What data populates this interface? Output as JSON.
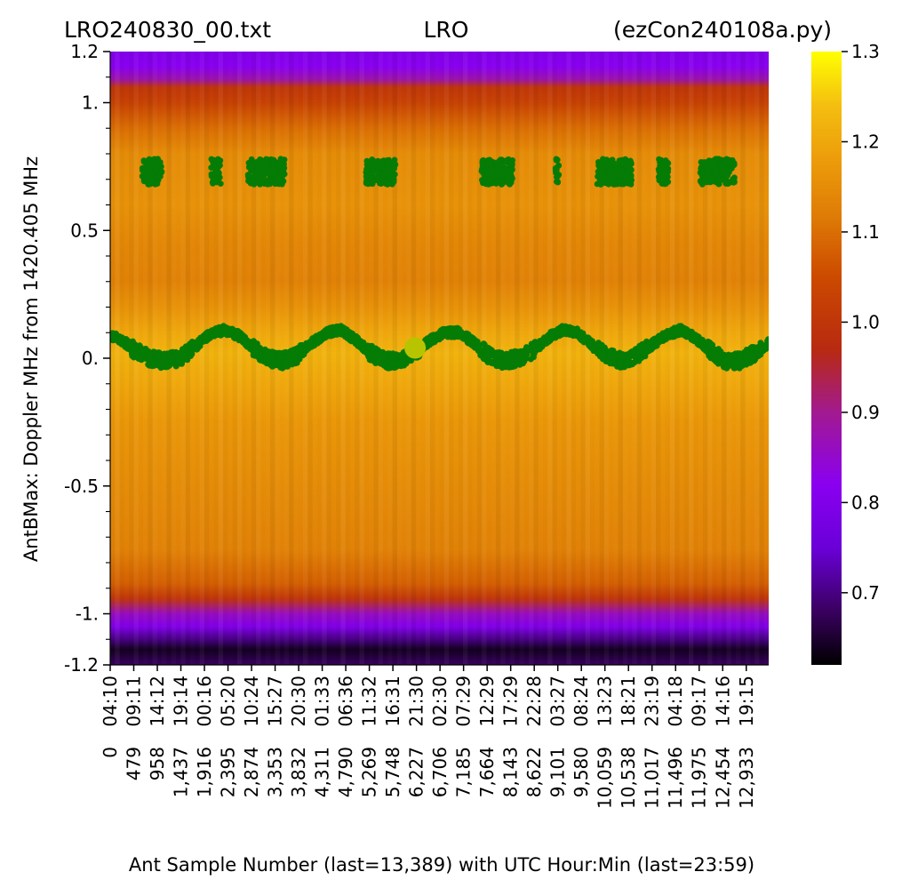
{
  "header": {
    "left": "LRO240830_00.txt",
    "center": "LRO",
    "right": "(ezCon240108a.py)"
  },
  "chart_data": {
    "type": "heatmap",
    "ylabel": "AntBMax:  Doppler MHz from 1420.405 MHz",
    "xlabel": "Ant Sample Number (last=13,389) with UTC Hour:Min (last=23:59)",
    "ylim": [
      -1.2,
      1.2
    ],
    "xlim": [
      0,
      13389
    ],
    "y_ticks": [
      {
        "value": 1.2,
        "label": "1.2"
      },
      {
        "value": 1.0,
        "label": "1."
      },
      {
        "value": 0.5,
        "label": "0.5"
      },
      {
        "value": 0.0,
        "label": "0."
      },
      {
        "value": -0.5,
        "label": "-0.5"
      },
      {
        "value": -1.0,
        "label": "-1."
      },
      {
        "value": -1.2,
        "label": "-1.2"
      }
    ],
    "y_minor_ticks": [
      1.1,
      0.9,
      0.8,
      0.7,
      0.6,
      0.4,
      0.3,
      0.2,
      0.1,
      -0.1,
      -0.2,
      -0.3,
      -0.4,
      -0.6,
      -0.7,
      -0.8,
      -0.9,
      -1.1
    ],
    "x_ticks": [
      {
        "sample": 0,
        "sample_label": "0",
        "time": "04:10"
      },
      {
        "sample": 479,
        "sample_label": "479",
        "time": "09:11"
      },
      {
        "sample": 958,
        "sample_label": "958",
        "time": "14:12"
      },
      {
        "sample": 1437,
        "sample_label": "1,437",
        "time": "19:14"
      },
      {
        "sample": 1916,
        "sample_label": "1,916",
        "time": "00:16"
      },
      {
        "sample": 2395,
        "sample_label": "2,395",
        "time": "05:20"
      },
      {
        "sample": 2874,
        "sample_label": "2,874",
        "time": "10:24"
      },
      {
        "sample": 3353,
        "sample_label": "3,353",
        "time": "15:27"
      },
      {
        "sample": 3832,
        "sample_label": "3,832",
        "time": "20:30"
      },
      {
        "sample": 4311,
        "sample_label": "4,311",
        "time": "01:33"
      },
      {
        "sample": 4790,
        "sample_label": "4,790",
        "time": "06:36"
      },
      {
        "sample": 5269,
        "sample_label": "5,269",
        "time": "11:32"
      },
      {
        "sample": 5748,
        "sample_label": "5,748",
        "time": "16:31"
      },
      {
        "sample": 6227,
        "sample_label": "6,227",
        "time": "21:30"
      },
      {
        "sample": 6706,
        "sample_label": "6,706",
        "time": "02:30"
      },
      {
        "sample": 7185,
        "sample_label": "7,185",
        "time": "07:29"
      },
      {
        "sample": 7664,
        "sample_label": "7,664",
        "time": "12:29"
      },
      {
        "sample": 8143,
        "sample_label": "8,143",
        "time": "17:29"
      },
      {
        "sample": 8622,
        "sample_label": "8,622",
        "time": "22:28"
      },
      {
        "sample": 9101,
        "sample_label": "9,101",
        "time": "03:27"
      },
      {
        "sample": 9580,
        "sample_label": "9,580",
        "time": "08:24"
      },
      {
        "sample": 10059,
        "sample_label": "10,059",
        "time": "13:23"
      },
      {
        "sample": 10538,
        "sample_label": "10,538",
        "time": "18:21"
      },
      {
        "sample": 11017,
        "sample_label": "11,017",
        "time": "23:19"
      },
      {
        "sample": 11496,
        "sample_label": "11,496",
        "time": "04:18"
      },
      {
        "sample": 11975,
        "sample_label": "11,975",
        "time": "09:17"
      },
      {
        "sample": 12454,
        "sample_label": "12,454",
        "time": "14:16"
      },
      {
        "sample": 12933,
        "sample_label": "12,933",
        "time": "19:15"
      }
    ],
    "colorbar": {
      "range": [
        0.62,
        1.3
      ],
      "ticks": [
        {
          "value": 1.3,
          "label": "1.3"
        },
        {
          "value": 1.2,
          "label": "1.2"
        },
        {
          "value": 1.1,
          "label": "1.1"
        },
        {
          "value": 1.0,
          "label": "1.0"
        },
        {
          "value": 0.9,
          "label": "0.9"
        },
        {
          "value": 0.8,
          "label": "0.8"
        },
        {
          "value": 0.7,
          "label": "0.7"
        }
      ],
      "colormap": [
        {
          "v": 0.62,
          "color": "#000000"
        },
        {
          "v": 0.68,
          "color": "#3a0060"
        },
        {
          "v": 0.75,
          "color": "#6a00d8"
        },
        {
          "v": 0.82,
          "color": "#8a00f0"
        },
        {
          "v": 0.9,
          "color": "#a21a90"
        },
        {
          "v": 0.97,
          "color": "#b82a10"
        },
        {
          "v": 1.05,
          "color": "#cc4a00"
        },
        {
          "v": 1.12,
          "color": "#df7d06"
        },
        {
          "v": 1.18,
          "color": "#ec9c0a"
        },
        {
          "v": 1.24,
          "color": "#f4be10"
        },
        {
          "v": 1.3,
          "color": "#ffff00"
        }
      ]
    },
    "heatmap_profile": [
      {
        "doppler": 1.2,
        "value": 0.8
      },
      {
        "doppler": 1.14,
        "value": 0.82
      },
      {
        "doppler": 1.09,
        "value": 0.88
      },
      {
        "doppler": 1.06,
        "value": 1.0
      },
      {
        "doppler": 1.0,
        "value": 1.03
      },
      {
        "doppler": 0.9,
        "value": 1.1
      },
      {
        "doppler": 0.8,
        "value": 1.15
      },
      {
        "doppler": 0.6,
        "value": 1.16
      },
      {
        "doppler": 0.45,
        "value": 1.14
      },
      {
        "doppler": 0.3,
        "value": 1.13
      },
      {
        "doppler": 0.2,
        "value": 1.16
      },
      {
        "doppler": 0.1,
        "value": 1.2
      },
      {
        "doppler": 0.02,
        "value": 1.22
      },
      {
        "doppler": -0.1,
        "value": 1.2
      },
      {
        "doppler": -0.25,
        "value": 1.17
      },
      {
        "doppler": -0.5,
        "value": 1.15
      },
      {
        "doppler": -0.75,
        "value": 1.13
      },
      {
        "doppler": -0.88,
        "value": 1.08
      },
      {
        "doppler": -0.94,
        "value": 1.0
      },
      {
        "doppler": -1.0,
        "value": 0.86
      },
      {
        "doppler": -1.05,
        "value": 0.8
      },
      {
        "doppler": -1.1,
        "value": 0.7
      },
      {
        "doppler": -1.14,
        "value": 0.64
      },
      {
        "doppler": -1.2,
        "value": 0.68
      }
    ],
    "doppler_peak_series": {
      "color": "#057c05",
      "points": [
        {
          "sample": 0,
          "doppler": 0.09
        },
        {
          "sample": 250,
          "doppler": 0.07
        },
        {
          "sample": 500,
          "doppler": 0.03
        },
        {
          "sample": 800,
          "doppler": 0.0
        },
        {
          "sample": 1100,
          "doppler": -0.01
        },
        {
          "sample": 1400,
          "doppler": 0.0
        },
        {
          "sample": 1700,
          "doppler": 0.04
        },
        {
          "sample": 2000,
          "doppler": 0.09
        },
        {
          "sample": 2300,
          "doppler": 0.11
        },
        {
          "sample": 2600,
          "doppler": 0.09
        },
        {
          "sample": 2900,
          "doppler": 0.04
        },
        {
          "sample": 3200,
          "doppler": 0.0
        },
        {
          "sample": 3500,
          "doppler": -0.01
        },
        {
          "sample": 3800,
          "doppler": 0.01
        },
        {
          "sample": 4100,
          "doppler": 0.06
        },
        {
          "sample": 4400,
          "doppler": 0.1
        },
        {
          "sample": 4700,
          "doppler": 0.11
        },
        {
          "sample": 5000,
          "doppler": 0.07
        },
        {
          "sample": 5300,
          "doppler": 0.02
        },
        {
          "sample": 5600,
          "doppler": -0.01
        },
        {
          "sample": 5900,
          "doppler": -0.01
        },
        {
          "sample": 6200,
          "doppler": 0.02
        },
        {
          "sample": 6500,
          "doppler": 0.07
        },
        {
          "sample": 6800,
          "doppler": 0.1
        },
        {
          "sample": 7100,
          "doppler": 0.1
        },
        {
          "sample": 7400,
          "doppler": 0.06
        },
        {
          "sample": 7700,
          "doppler": 0.01
        },
        {
          "sample": 8000,
          "doppler": -0.01
        },
        {
          "sample": 8300,
          "doppler": 0.0
        },
        {
          "sample": 8600,
          "doppler": 0.03
        },
        {
          "sample": 8900,
          "doppler": 0.08
        },
        {
          "sample": 9200,
          "doppler": 0.11
        },
        {
          "sample": 9500,
          "doppler": 0.1
        },
        {
          "sample": 9800,
          "doppler": 0.05
        },
        {
          "sample": 10100,
          "doppler": 0.01
        },
        {
          "sample": 10400,
          "doppler": -0.01
        },
        {
          "sample": 10700,
          "doppler": 0.01
        },
        {
          "sample": 11000,
          "doppler": 0.05
        },
        {
          "sample": 11300,
          "doppler": 0.09
        },
        {
          "sample": 11600,
          "doppler": 0.11
        },
        {
          "sample": 11900,
          "doppler": 0.08
        },
        {
          "sample": 12200,
          "doppler": 0.03
        },
        {
          "sample": 12500,
          "doppler": -0.01
        },
        {
          "sample": 12800,
          "doppler": -0.01
        },
        {
          "sample": 13100,
          "doppler": 0.02
        },
        {
          "sample": 13389,
          "doppler": 0.06
        }
      ]
    },
    "doppler_upper_clusters": {
      "color": "#057c05",
      "doppler_center": 0.73,
      "clusters": [
        {
          "sample_start": 650,
          "sample_end": 1050
        },
        {
          "sample_start": 2050,
          "sample_end": 2250
        },
        {
          "sample_start": 2800,
          "sample_end": 3550
        },
        {
          "sample_start": 5200,
          "sample_end": 5800
        },
        {
          "sample_start": 7550,
          "sample_end": 8200
        },
        {
          "sample_start": 9050,
          "sample_end": 9120
        },
        {
          "sample_start": 9900,
          "sample_end": 10600
        },
        {
          "sample_start": 11150,
          "sample_end": 11350
        },
        {
          "sample_start": 12000,
          "sample_end": 12700
        }
      ]
    },
    "marker": {
      "sample": 6200,
      "doppler": 0.04,
      "color": "#b8c400"
    }
  }
}
